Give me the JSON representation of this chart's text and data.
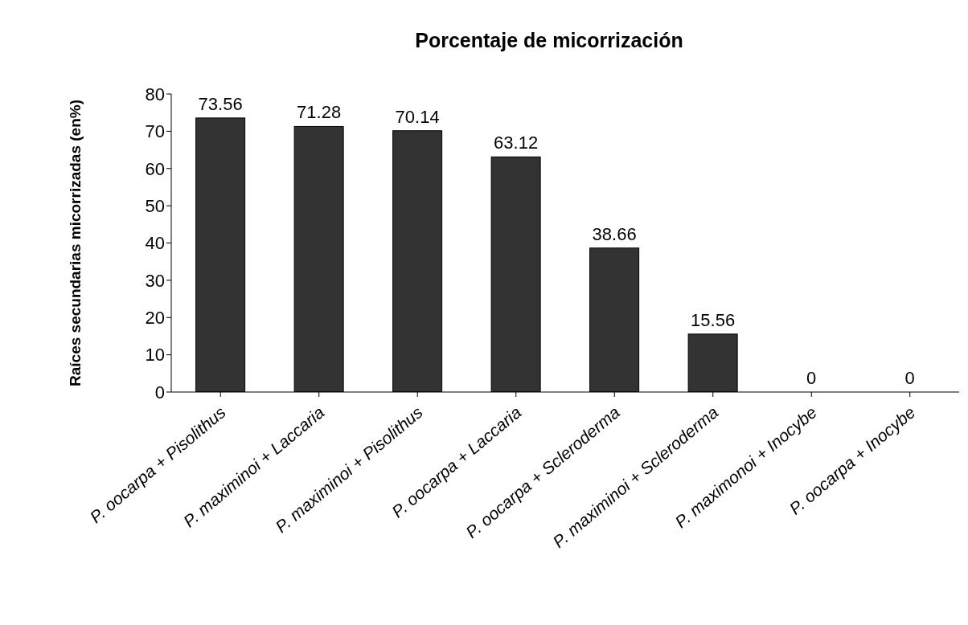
{
  "chart_data": {
    "type": "bar",
    "title": "Porcentaje de micorrización",
    "ylabel": "Raíces secundarias micorrizadas (en%)",
    "categories": [
      "P. oocarpa + Pisolithus",
      "P. maximinoi + Laccaria",
      "P. maximinoi + Pisolithus",
      "P. oocarpa + Laccaria",
      "P. oocarpa + Scleroderma",
      "P. maximinoi + Scleroderma",
      "P. maximonoi + Inocybe",
      "P. oocarpa + Inocybe"
    ],
    "values": [
      73.56,
      71.28,
      70.14,
      63.12,
      38.66,
      15.56,
      0,
      0
    ],
    "color": "#333333",
    "ylim": [
      0,
      80
    ],
    "yticks": [
      0,
      10,
      20,
      30,
      40,
      50,
      60,
      70,
      80
    ],
    "data_labels": true,
    "grid": false
  }
}
